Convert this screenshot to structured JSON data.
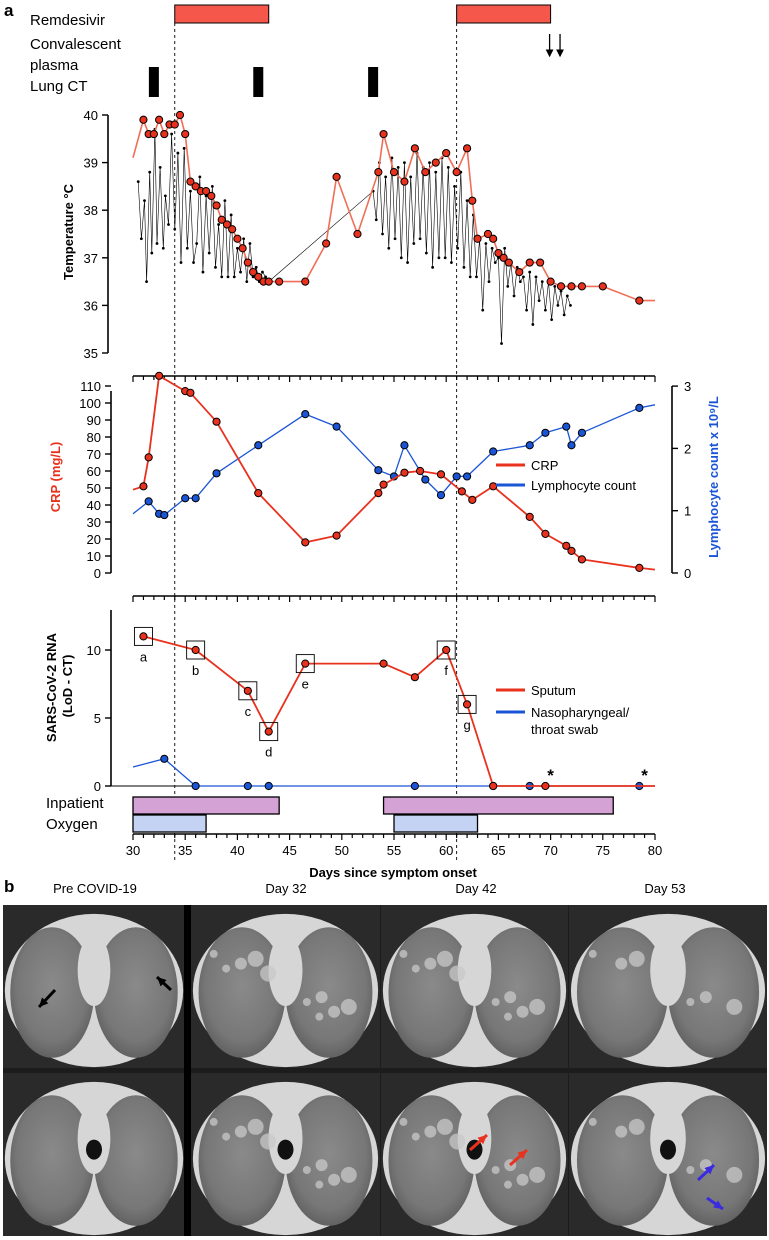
{
  "panel_a_label": "a",
  "panel_b_label": "b",
  "track_labels": {
    "remdesivir": "Remdesivir",
    "plasma_line1": "Convalescent",
    "plasma_line2": "plasma",
    "lung_ct": "Lung CT",
    "inpatient": "Inpatient",
    "oxygen": "Oxygen"
  },
  "colors": {
    "red": "#e8321e",
    "salmon": "#f06e57",
    "blue": "#1a55d6",
    "navy": "#203a9c",
    "bar_red": "#f5574b",
    "inpatient_fill": "#d4a2d4",
    "oxygen_fill": "#c4d2f4"
  },
  "x_axis": {
    "label": "Days since symptom onset",
    "range": [
      30,
      80
    ],
    "ticks": [
      30,
      35,
      40,
      45,
      50,
      55,
      60,
      65,
      70,
      75,
      80
    ]
  },
  "dashed_lines_days": [
    34,
    61
  ],
  "chart_data": [
    {
      "type": "timeline",
      "remdesivir": [
        [
          34,
          43
        ],
        [
          61,
          70
        ]
      ],
      "convalescent_plasma_days": [
        70,
        71
      ],
      "lung_ct_days": [
        32,
        42,
        53
      ],
      "inpatient": [
        [
          30,
          44
        ],
        [
          54,
          76
        ]
      ],
      "oxygen": [
        [
          30,
          37
        ],
        [
          55,
          63
        ]
      ]
    },
    {
      "type": "line",
      "ylabel": "Temperature °C",
      "ylim": [
        35,
        40
      ],
      "yticks": [
        35,
        36,
        37,
        38,
        39,
        40
      ],
      "series": [
        {
          "role": "daily",
          "x": [
            30,
            31,
            31.5,
            32,
            32.5,
            33,
            33.5,
            34,
            34.5,
            35,
            35.5,
            36,
            36.5,
            37,
            37.5,
            38,
            38.5,
            39,
            39.5,
            40,
            40.5,
            41,
            41.5,
            42,
            42.5,
            43,
            44,
            46.5,
            48.5,
            49.5,
            51.5,
            53.5,
            54,
            55,
            56,
            57,
            58,
            59,
            60,
            61,
            62,
            62.5,
            63,
            64,
            64.5,
            65,
            65.5,
            66,
            67,
            68,
            69,
            70,
            71,
            72,
            73,
            75,
            78.5,
            80
          ],
          "values": [
            39.1,
            39.9,
            39.6,
            39.6,
            39.9,
            39.6,
            39.8,
            39.8,
            40.0,
            39.6,
            38.6,
            38.5,
            38.4,
            38.4,
            38.3,
            38.1,
            37.8,
            37.7,
            37.6,
            37.4,
            37.2,
            36.9,
            36.7,
            36.6,
            36.5,
            36.5,
            36.5,
            36.5,
            37.3,
            38.7,
            37.5,
            38.8,
            39.6,
            38.8,
            38.6,
            39.3,
            38.8,
            39.0,
            39.2,
            38.8,
            39.3,
            38.2,
            37.4,
            37.5,
            37.4,
            37.1,
            37.0,
            36.9,
            36.7,
            36.9,
            36.9,
            36.5,
            36.4,
            36.4,
            36.4,
            36.4,
            36.1,
            36.1
          ]
        },
        {
          "role": "frequent",
          "x": [
            30.5,
            30.8,
            31.1,
            31.3,
            31.6,
            31.8,
            32.1,
            32.3,
            32.6,
            32.9,
            33.1,
            33.4,
            33.7,
            34.0,
            34.3,
            34.6,
            34.9,
            35.2,
            35.5,
            35.8,
            36.1,
            36.4,
            36.7,
            37.0,
            37.3,
            37.6,
            37.9,
            38.2,
            38.5,
            38.8,
            39.1,
            39.4,
            39.7,
            40.0,
            40.3,
            40.6,
            40.9,
            41.2,
            41.5,
            41.8,
            42.1,
            42.4,
            42.7,
            43.0,
            53.0,
            53.3,
            53.6,
            53.9,
            54.2,
            54.5,
            54.8,
            55.1,
            55.4,
            55.7,
            56.0,
            56.3,
            56.6,
            56.9,
            57.2,
            57.5,
            57.8,
            58.1,
            58.4,
            58.7,
            59.0,
            59.3,
            59.6,
            59.9,
            60.2,
            60.5,
            60.8,
            61.1,
            61.4,
            61.7,
            62.0,
            62.3,
            62.6,
            62.9,
            63.2,
            63.5,
            63.8,
            64.1,
            64.4,
            64.7,
            65.0,
            65.3,
            65.6,
            65.9,
            66.2,
            66.5,
            66.8,
            67.1,
            67.4,
            67.7,
            68.0,
            68.3,
            68.6,
            68.9,
            69.2,
            69.5,
            69.8,
            70.1,
            70.4,
            70.7,
            71.0,
            71.3,
            71.6,
            71.9
          ],
          "values": [
            38.6,
            37.4,
            38.2,
            36.5,
            38.8,
            37.1,
            39.7,
            37.3,
            38.9,
            37.2,
            38.3,
            37.7,
            39.6,
            37.6,
            39.2,
            36.9,
            39.3,
            37.2,
            38.4,
            36.9,
            37.3,
            38.7,
            36.7,
            38.3,
            37.1,
            38.5,
            36.8,
            37.7,
            36.6,
            38.2,
            36.6,
            37.9,
            36.6,
            37.2,
            36.7,
            37.4,
            36.5,
            37.3,
            36.6,
            36.8,
            36.5,
            36.7,
            36.6,
            36.5,
            38.4,
            37.8,
            39.0,
            37.5,
            38.7,
            37.2,
            39.1,
            37.4,
            38.9,
            37.0,
            39.0,
            36.9,
            38.7,
            37.3,
            39.2,
            37.4,
            38.9,
            37.1,
            39.0,
            36.8,
            38.8,
            37.0,
            39.1,
            37.0,
            38.9,
            36.9,
            38.5,
            37.2,
            38.8,
            36.8,
            38.2,
            36.6,
            37.9,
            36.6,
            37.4,
            35.9,
            37.3,
            36.5,
            37.2,
            36.9,
            37.0,
            35.2,
            37.2,
            36.4,
            36.9,
            36.2,
            36.8,
            36.5,
            36.6,
            35.9,
            36.7,
            35.6,
            36.6,
            36.1,
            36.5,
            35.9,
            36.5,
            35.7,
            36.4,
            36.0,
            36.3,
            35.8,
            36.2,
            36.0
          ]
        }
      ]
    },
    {
      "type": "line",
      "ylabel": "CRP (mg/L)",
      "ylabel_right": "Lymphocyte count x 10⁹/L",
      "ylim": [
        0,
        115
      ],
      "yticks": [
        0,
        10,
        20,
        30,
        40,
        50,
        60,
        70,
        80,
        90,
        100,
        110
      ],
      "ylim_right": [
        0,
        3
      ],
      "yticks_right": [
        0,
        1,
        2,
        3
      ],
      "series": [
        {
          "name": "CRP",
          "axis": "left",
          "x": [
            30,
            31,
            31.5,
            32.5,
            35,
            35.5,
            38,
            42,
            46.5,
            49.5,
            53.5,
            54,
            56,
            57.5,
            59.5,
            61.5,
            62.5,
            64.5,
            68,
            69.5,
            71.5,
            72,
            73,
            78.5,
            80
          ],
          "values": [
            49,
            51,
            68,
            116,
            107,
            106,
            89,
            47,
            18,
            22,
            47,
            52,
            59,
            60,
            58,
            48,
            43,
            51,
            33,
            23,
            16,
            13,
            8,
            3,
            2
          ]
        },
        {
          "name": "Lymphocyte count",
          "axis": "right",
          "x": [
            30,
            31.5,
            32.5,
            33,
            35,
            36,
            38,
            42,
            46.5,
            49.5,
            53.5,
            55,
            56,
            58,
            59.5,
            61,
            62,
            64.5,
            68,
            69.5,
            71.5,
            72,
            73,
            78.5,
            80
          ],
          "values": [
            0.95,
            1.15,
            0.95,
            0.93,
            1.2,
            1.2,
            1.6,
            2.05,
            2.55,
            2.35,
            1.65,
            1.55,
            2.05,
            1.5,
            1.25,
            1.55,
            1.55,
            1.95,
            2.05,
            2.25,
            2.35,
            2.05,
            2.25,
            2.65,
            2.7
          ]
        }
      ]
    },
    {
      "type": "line",
      "ylabel": "SARS-CoV-2 RNA (LoD - CT)",
      "ylim": [
        0,
        12
      ],
      "yticks": [
        0,
        5,
        10
      ],
      "series": [
        {
          "name": "Sputum",
          "x": [
            31,
            36,
            41,
            43,
            46.5,
            54,
            57,
            60,
            62,
            64.5,
            69.5,
            80
          ],
          "values": [
            11,
            10,
            7,
            4,
            9,
            9,
            8,
            10,
            6,
            0,
            0,
            0
          ],
          "boxed_labels": [
            {
              "x": 31,
              "label": "a"
            },
            {
              "x": 36,
              "label": "b"
            },
            {
              "x": 41,
              "label": "c"
            },
            {
              "x": 43,
              "label": "d"
            },
            {
              "x": 46.5,
              "label": "e"
            },
            {
              "x": 60,
              "label": "f"
            },
            {
              "x": 62,
              "label": "g"
            }
          ]
        },
        {
          "name": "Nasopharyngeal/ throat swab",
          "legend_line1": "Nasopharyngeal/",
          "legend_line2": "throat swab",
          "x": [
            30,
            33,
            36,
            41,
            43,
            57,
            64.5,
            68,
            78.5,
            80
          ],
          "values": [
            1.4,
            2,
            0,
            0,
            0,
            0,
            0,
            0,
            0,
            0
          ]
        }
      ],
      "asterisk_days": [
        70,
        79
      ],
      "asterisk_text": "*"
    }
  ],
  "ct_images": {
    "column_titles": [
      "Pre COVID-19",
      "Day 32",
      "Day 42",
      "Day 53"
    ]
  }
}
